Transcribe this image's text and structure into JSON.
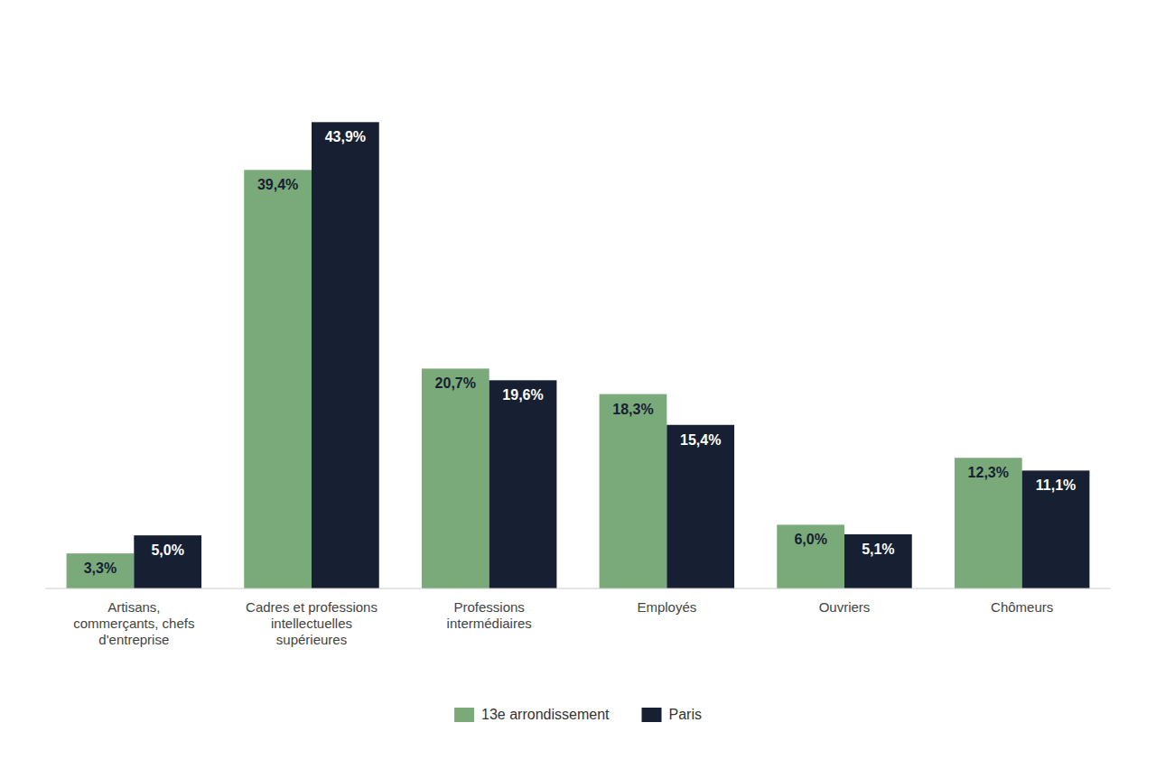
{
  "chart_data": {
    "type": "bar",
    "categories": [
      "Artisans,\ncommerçants, chefs\nd'entreprise",
      "Cadres et professions\nintellectuelles\nsupérieures",
      "Professions\nintermédiaires",
      "Employés",
      "Ouvriers",
      "Chômeurs"
    ],
    "series": [
      {
        "name": "13e arrondissement",
        "color": "#7aaa7a",
        "values": [
          3.3,
          39.4,
          20.7,
          18.3,
          6.0,
          12.3
        ],
        "value_labels": [
          "3,3%",
          "39,4%",
          "20,7%",
          "18,3%",
          "6,0%",
          "12,3%"
        ]
      },
      {
        "name": "Paris",
        "color": "#162032",
        "values": [
          5.0,
          43.9,
          19.6,
          15.4,
          5.1,
          11.1
        ],
        "value_labels": [
          "5,0%",
          "43,9%",
          "19,6%",
          "15,4%",
          "5,1%",
          "11,1%"
        ]
      }
    ],
    "ylim": [
      0,
      52
    ],
    "grid": false,
    "legend": "bottom",
    "data_labels": true,
    "tick_labels": "x"
  }
}
